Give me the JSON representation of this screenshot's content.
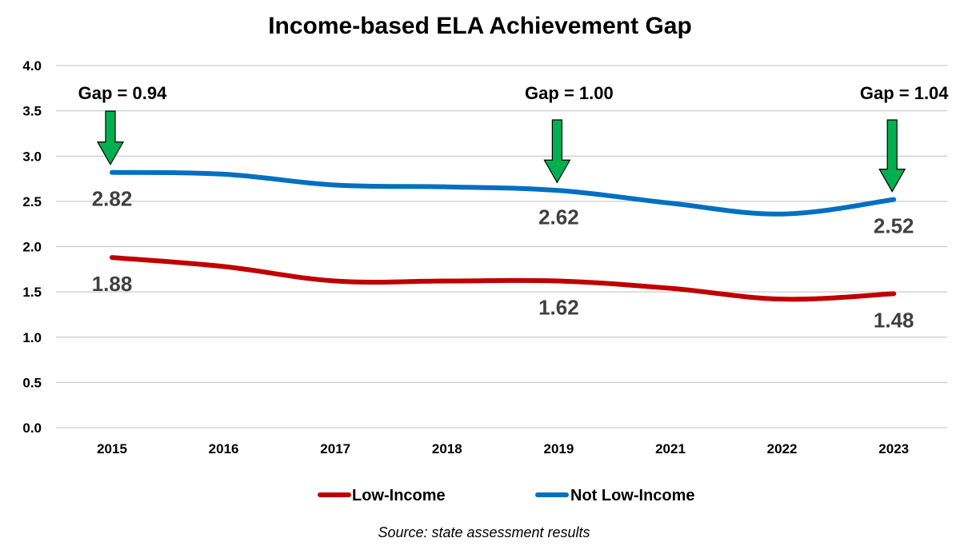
{
  "chart_data": {
    "type": "line",
    "title": "Income-based ELA Achievement Gap",
    "categories": [
      "2015",
      "2016",
      "2017",
      "2018",
      "2019",
      "2021",
      "2022",
      "2023"
    ],
    "series": [
      {
        "name": "Low-Income",
        "color": "#c00000",
        "values": [
          1.88,
          1.78,
          1.62,
          1.62,
          1.62,
          1.54,
          1.42,
          1.48
        ]
      },
      {
        "name": "Not Low-Income",
        "color": "#0070c0",
        "values": [
          2.82,
          2.8,
          2.68,
          2.66,
          2.62,
          2.48,
          2.36,
          2.52
        ]
      }
    ],
    "ylim": [
      0,
      4
    ],
    "yticks": [
      "0.0",
      "0.5",
      "1.0",
      "1.5",
      "2.0",
      "2.5",
      "3.0",
      "3.5",
      "4.0"
    ],
    "grid": true,
    "legend_position": "bottom",
    "data_labels": [
      {
        "series": 0,
        "index": 0,
        "text": "1.88"
      },
      {
        "series": 0,
        "index": 4,
        "text": "1.62"
      },
      {
        "series": 0,
        "index": 7,
        "text": "1.48"
      },
      {
        "series": 1,
        "index": 0,
        "text": "2.82"
      },
      {
        "series": 1,
        "index": 4,
        "text": "2.62"
      },
      {
        "series": 1,
        "index": 7,
        "text": "2.52"
      }
    ],
    "annotations": [
      {
        "index": 0,
        "text": "Gap = 0.94"
      },
      {
        "index": 4,
        "text": "Gap = 1.00"
      },
      {
        "index": 7,
        "text": "Gap = 1.04"
      }
    ],
    "arrow_color": "#00b050",
    "source": "Source: state assessment results"
  }
}
